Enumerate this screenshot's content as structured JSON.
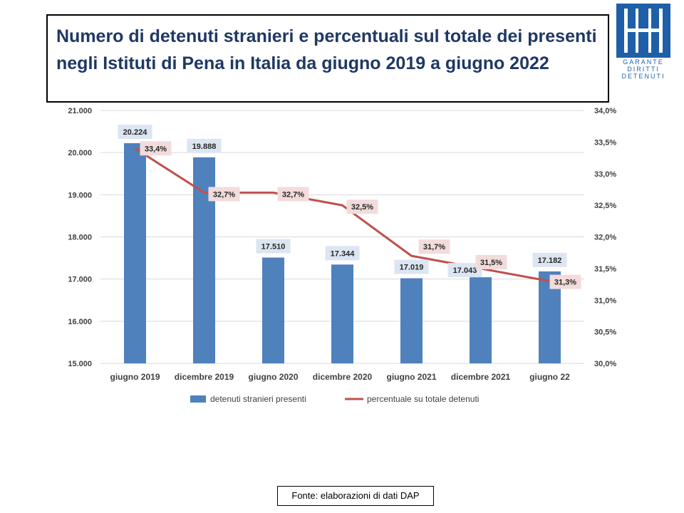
{
  "title": "Numero di detenuti stranieri e percentuali sul totale dei presenti negli Istituti di Pena in Italia da giugno 2019 a giugno 2022",
  "logo": {
    "lines": [
      "GARANTE",
      "DIRITTI",
      "DETENUTI"
    ],
    "color": "#1f5fa8"
  },
  "source": "Fonte: elaborazioni di dati DAP",
  "chart_data": {
    "type": "bar",
    "categories": [
      "giugno 2019",
      "dicembre 2019",
      "giugno 2020",
      "dicembre 2020",
      "giugno 2021",
      "dicembre 2021",
      "giugno 22"
    ],
    "series": [
      {
        "name": "detenuti stranieri presenti",
        "type": "bar",
        "axis": "left",
        "values": [
          20224,
          19888,
          17510,
          17344,
          17019,
          17043,
          17182
        ],
        "labels": [
          "20.224",
          "19.888",
          "17.510",
          "17.344",
          "17.019",
          "17.043",
          "17.182"
        ],
        "color": "#4f81bd"
      },
      {
        "name": "percentuale su totale detenuti",
        "type": "line",
        "axis": "right",
        "values": [
          33.4,
          32.7,
          32.7,
          32.5,
          31.7,
          31.5,
          31.3
        ],
        "labels": [
          "33,4%",
          "32,7%",
          "32,7%",
          "32,5%",
          "31,7%",
          "31,5%",
          "31,3%"
        ],
        "color": "#c0504d"
      }
    ],
    "y_left": {
      "lim": [
        15000,
        21000
      ],
      "ticks": [
        15000,
        16000,
        17000,
        18000,
        19000,
        20000,
        21000
      ],
      "tick_labels": [
        "15.000",
        "16.000",
        "17.000",
        "18.000",
        "19.000",
        "20.000",
        "21.000"
      ]
    },
    "y_right": {
      "lim": [
        30.0,
        34.0
      ],
      "ticks": [
        30.0,
        30.5,
        31.0,
        31.5,
        32.0,
        32.5,
        33.0,
        33.5,
        34.0
      ],
      "tick_labels": [
        "30,0%",
        "30,5%",
        "31,0%",
        "31,5%",
        "32,0%",
        "32,5%",
        "33,0%",
        "33,5%",
        "34,0%"
      ]
    },
    "grid": true,
    "legend": "bottom",
    "bar_label_bg": "#dce6f2",
    "line_label_bg": "#f2dcdb"
  }
}
